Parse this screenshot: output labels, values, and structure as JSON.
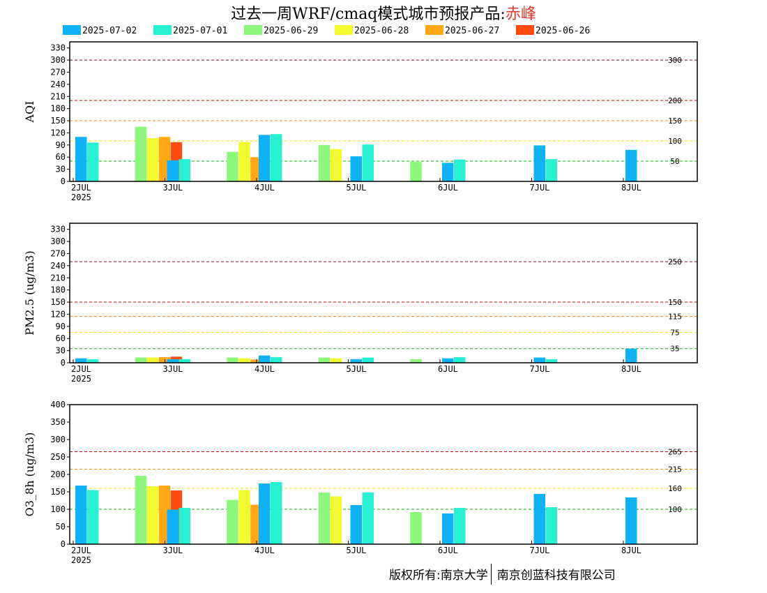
{
  "title": {
    "prefix": "过去一周WRF/cmaq模式城市预报产品:",
    "city": "赤峰",
    "city_color": "#e03a2e"
  },
  "legend": [
    {
      "label": "2025-07-02",
      "color": "#0fb3f5"
    },
    {
      "label": "2025-07-01",
      "color": "#28f0d2"
    },
    {
      "label": "2025-06-29",
      "color": "#8cf77a"
    },
    {
      "label": "2025-06-28",
      "color": "#f0fa2e"
    },
    {
      "label": "2025-06-27",
      "color": "#ffa714"
    },
    {
      "label": "2025-06-26",
      "color": "#ff4b0f"
    }
  ],
  "footer": {
    "left": "版权所有:南京大学",
    "right": "南京创蓝科技有限公司"
  },
  "chart_data": [
    {
      "type": "bar",
      "ylabel": "AQI",
      "ylim": [
        0,
        345
      ],
      "yticks": [
        0,
        30,
        60,
        90,
        120,
        150,
        180,
        210,
        240,
        270,
        300,
        330
      ],
      "x_tick_labels": [
        "2JUL",
        "3JUL",
        "4JUL",
        "5JUL",
        "6JUL",
        "7JUL",
        "8JUL"
      ],
      "x_year": "2025",
      "thresholds": [
        {
          "value": 300,
          "label": "300",
          "color": "#990033"
        },
        {
          "value": 200,
          "label": "200",
          "color": "#cc0000"
        },
        {
          "value": 150,
          "label": "150",
          "color": "#ff8800"
        },
        {
          "value": 100,
          "label": "100",
          "color": "#f2e600"
        },
        {
          "value": 50,
          "label": "50",
          "color": "#00bb00"
        }
      ],
      "days": [
        [
          110,
          96,
          null,
          null,
          null,
          null
        ],
        [
          null,
          null,
          135,
          107,
          110,
          97
        ],
        [
          52,
          55,
          null,
          null,
          null,
          null
        ],
        [
          null,
          null,
          73,
          97,
          60,
          null
        ],
        [
          115,
          117,
          null,
          null,
          null,
          null
        ],
        [
          null,
          null,
          90,
          80,
          null,
          null
        ],
        [
          62,
          91,
          null,
          null,
          null,
          null
        ],
        [
          null,
          null,
          48,
          null,
          null,
          null
        ],
        [
          46,
          54,
          null,
          null,
          null,
          null
        ],
        [
          null,
          null,
          null,
          null,
          null,
          null
        ],
        [
          89,
          55,
          null,
          null,
          null,
          null
        ],
        [
          null,
          null,
          null,
          null,
          null,
          null
        ],
        [
          78,
          null,
          null,
          null,
          null,
          null
        ]
      ]
    },
    {
      "type": "bar",
      "ylabel": "PM2.5 (ug/m3)",
      "ylim": [
        0,
        345
      ],
      "yticks": [
        0,
        30,
        60,
        90,
        120,
        150,
        180,
        210,
        240,
        270,
        300,
        330
      ],
      "x_tick_labels": [
        "2JUL",
        "3JUL",
        "4JUL",
        "5JUL",
        "6JUL",
        "7JUL",
        "8JUL"
      ],
      "x_year": "2025",
      "thresholds": [
        {
          "value": 250,
          "label": "250",
          "color": "#990033"
        },
        {
          "value": 150,
          "label": "150",
          "color": "#cc0000"
        },
        {
          "value": 115,
          "label": "115",
          "color": "#ff8800"
        },
        {
          "value": 75,
          "label": "75",
          "color": "#f2e600"
        },
        {
          "value": 35,
          "label": "35",
          "color": "#00bb00"
        }
      ],
      "days": [
        [
          11,
          9,
          null,
          null,
          null,
          null
        ],
        [
          null,
          null,
          13,
          13,
          14,
          15
        ],
        [
          9,
          9,
          null,
          null,
          null,
          null
        ],
        [
          null,
          null,
          13,
          11,
          8,
          null
        ],
        [
          18,
          14,
          null,
          null,
          null,
          null
        ],
        [
          null,
          null,
          13,
          11,
          null,
          null
        ],
        [
          9,
          13,
          null,
          null,
          null,
          null
        ],
        [
          null,
          null,
          9,
          null,
          null,
          null
        ],
        [
          11,
          14,
          null,
          null,
          null,
          null
        ],
        [
          null,
          null,
          null,
          null,
          null,
          null
        ],
        [
          13,
          9,
          null,
          null,
          null,
          null
        ],
        [
          null,
          null,
          null,
          null,
          null,
          null
        ],
        [
          35,
          null,
          null,
          null,
          null,
          null
        ]
      ]
    },
    {
      "type": "bar",
      "ylabel": "O3_8h (ug/m3)",
      "ylim": [
        0,
        400
      ],
      "yticks": [
        0,
        50,
        100,
        150,
        200,
        250,
        300,
        350,
        400
      ],
      "x_tick_labels": [
        "2JUL",
        "3JUL",
        "4JUL",
        "5JUL",
        "6JUL",
        "7JUL",
        "8JUL"
      ],
      "x_year": "2025",
      "thresholds": [
        {
          "value": 265,
          "label": "265",
          "color": "#cc0000"
        },
        {
          "value": 215,
          "label": "215",
          "color": "#ff8800"
        },
        {
          "value": 160,
          "label": "160",
          "color": "#f2e600"
        },
        {
          "value": 100,
          "label": "100",
          "color": "#00bb00"
        }
      ],
      "days": [
        [
          168,
          155,
          null,
          null,
          null,
          null
        ],
        [
          null,
          null,
          196,
          166,
          168,
          154
        ],
        [
          99,
          104,
          null,
          null,
          null,
          null
        ],
        [
          null,
          null,
          127,
          155,
          113,
          null
        ],
        [
          174,
          178,
          null,
          null,
          null,
          null
        ],
        [
          null,
          null,
          148,
          137,
          null,
          null
        ],
        [
          112,
          148,
          null,
          null,
          null,
          null
        ],
        [
          null,
          null,
          92,
          null,
          null,
          null
        ],
        [
          88,
          104,
          null,
          null,
          null,
          null
        ],
        [
          null,
          null,
          null,
          null,
          null,
          null
        ],
        [
          144,
          106,
          null,
          null,
          null,
          null
        ],
        [
          null,
          null,
          null,
          null,
          null,
          null
        ],
        [
          134,
          null,
          null,
          null,
          null,
          null
        ]
      ]
    }
  ]
}
